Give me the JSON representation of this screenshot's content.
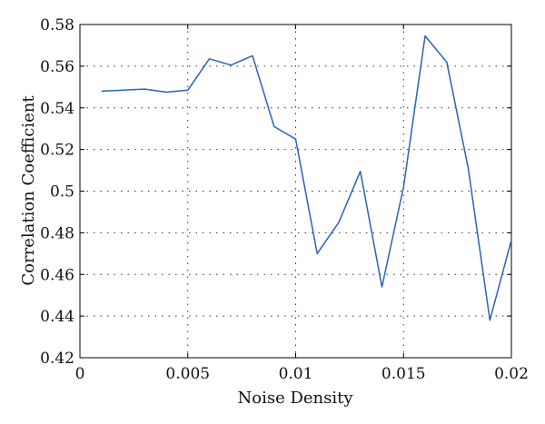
{
  "chart_data": {
    "type": "line",
    "xlabel": "Noise Density",
    "ylabel": "Correlation Coefficient",
    "xlim": [
      0,
      0.02
    ],
    "ylim": [
      0.42,
      0.58
    ],
    "grid": true,
    "x_ticks": [
      0,
      0.005,
      0.01,
      0.015,
      0.02
    ],
    "x_tick_labels": [
      "0",
      "0.005",
      "0.01",
      "0.015",
      "0.02"
    ],
    "y_ticks": [
      0.42,
      0.44,
      0.46,
      0.48,
      0.5,
      0.52,
      0.54,
      0.56,
      0.58
    ],
    "y_tick_labels": [
      "0.42",
      "0.44",
      "0.46",
      "0.48",
      "0.5",
      "0.52",
      "0.54",
      "0.56",
      "0.58"
    ],
    "colors": {
      "series": "#2a62b8"
    },
    "series": [
      {
        "x": [
          0.001,
          0.002,
          0.003,
          0.004,
          0.005,
          0.006,
          0.007,
          0.008,
          0.009,
          0.01,
          0.011,
          0.012,
          0.013,
          0.014,
          0.015,
          0.016,
          0.017,
          0.018,
          0.019,
          0.02
        ],
        "values": [
          0.548,
          0.5485,
          0.549,
          0.5475,
          0.5485,
          0.5635,
          0.5605,
          0.565,
          0.531,
          0.525,
          0.47,
          0.485,
          0.5095,
          0.454,
          0.502,
          0.5745,
          0.562,
          0.511,
          0.438,
          0.4765
        ]
      }
    ]
  }
}
